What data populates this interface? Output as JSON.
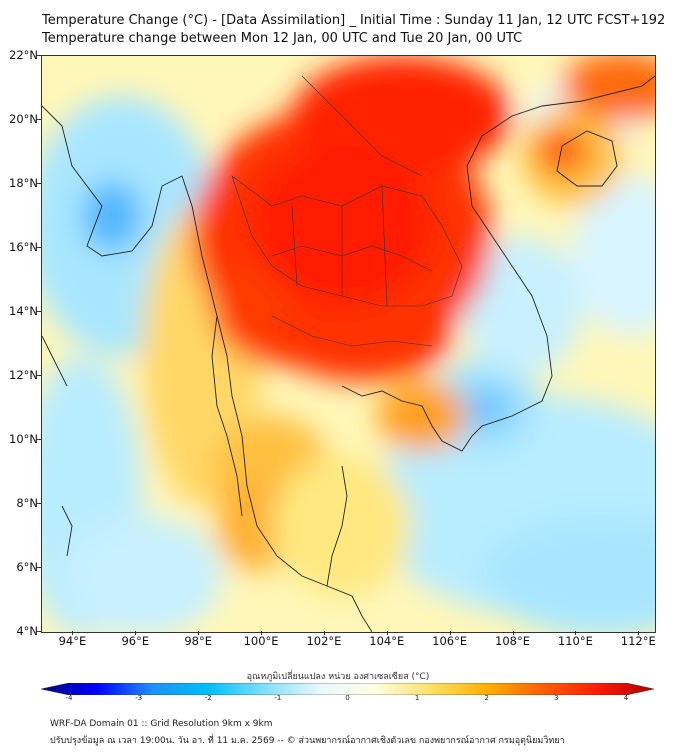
{
  "title_line1": "Temperature Change (°C) - [Data Assimilation] _ Initial Time : Sunday 11 Jan, 12 UTC FCST+192",
  "title_line2": "Temperature change between Mon 12 Jan, 00 UTC and Tue 20 Jan, 00 UTC",
  "lat_labels": [
    "22°N",
    "20°N",
    "18°N",
    "16°N",
    "14°N",
    "12°N",
    "10°N",
    "8°N",
    "6°N",
    "4°N"
  ],
  "lon_labels": [
    "94°E",
    "96°E",
    "98°E",
    "100°E",
    "102°E",
    "104°E",
    "106°E",
    "108°E",
    "110°E",
    "112°E"
  ],
  "colorbar": {
    "title": "อุณหภูมิเปลี่ยนแปลง หน่วย องศาเซลเซียส (°C)",
    "labels": [
      "-4",
      "-3",
      "-2",
      "-1",
      "0",
      "1",
      "2",
      "3",
      "4"
    ],
    "colors": [
      "#000080",
      "#0000ff",
      "#1e90ff",
      "#00bfff",
      "#7fdfff",
      "#e8f8ff",
      "#ffffe0",
      "#ffe066",
      "#ffb000",
      "#ff6000",
      "#ff1a00",
      "#b00000"
    ]
  },
  "footer_line1": "WRF-DA Domain 01 :: Grid Resolution 9km x 9km",
  "footer_line2": "ปรับปรุงข้อมูล ณ เวลา 19:00น. วัน อา. ที่ 11 ม.ค. 2569 -- © ส่วนพยากรณ์อากาศเชิงตัวเลข กองพยากรณ์อากาศ กรมอุตุนิยมวิทยา"
}
